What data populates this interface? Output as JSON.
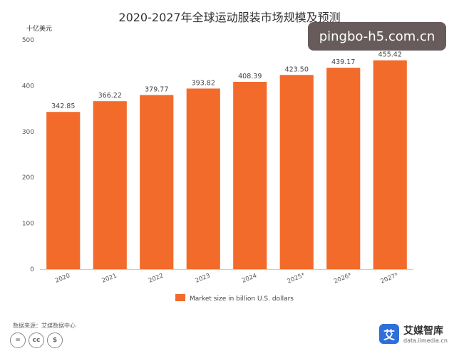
{
  "chart_data": {
    "type": "bar",
    "title": "2020-2027年全球运动服装市场规模及预测",
    "unit_label": "十亿美元",
    "categories": [
      "2020",
      "2021",
      "2022",
      "2023",
      "2024",
      "2025*",
      "2026*",
      "2027*"
    ],
    "series": [
      {
        "name": "Market size in billion U.S. dollars",
        "values": [
          342.85,
          366.22,
          379.77,
          393.82,
          408.39,
          423.5,
          439.17,
          455.42
        ],
        "value_labels": [
          "342.85",
          "366.22",
          "379.77",
          "393.82",
          "408.39",
          "423.50",
          "439.17",
          "455.42"
        ]
      }
    ],
    "ylim": [
      0,
      500
    ],
    "yticks": [
      "0",
      "100",
      "200",
      "300",
      "400",
      "500"
    ],
    "ytick_values": [
      0,
      100,
      200,
      300,
      400,
      500
    ],
    "grid": false,
    "legend": "bottom-center",
    "bar_color": "#f26b2b"
  },
  "source": "数据来源：艾媒数据中心",
  "watermark": "pingbo-h5.com.cn",
  "brand": {
    "logo_glyph": "艾",
    "name": "艾媒智库",
    "url": "data.iimedia.cn"
  },
  "license_icons": [
    "=",
    "cc",
    "$"
  ]
}
